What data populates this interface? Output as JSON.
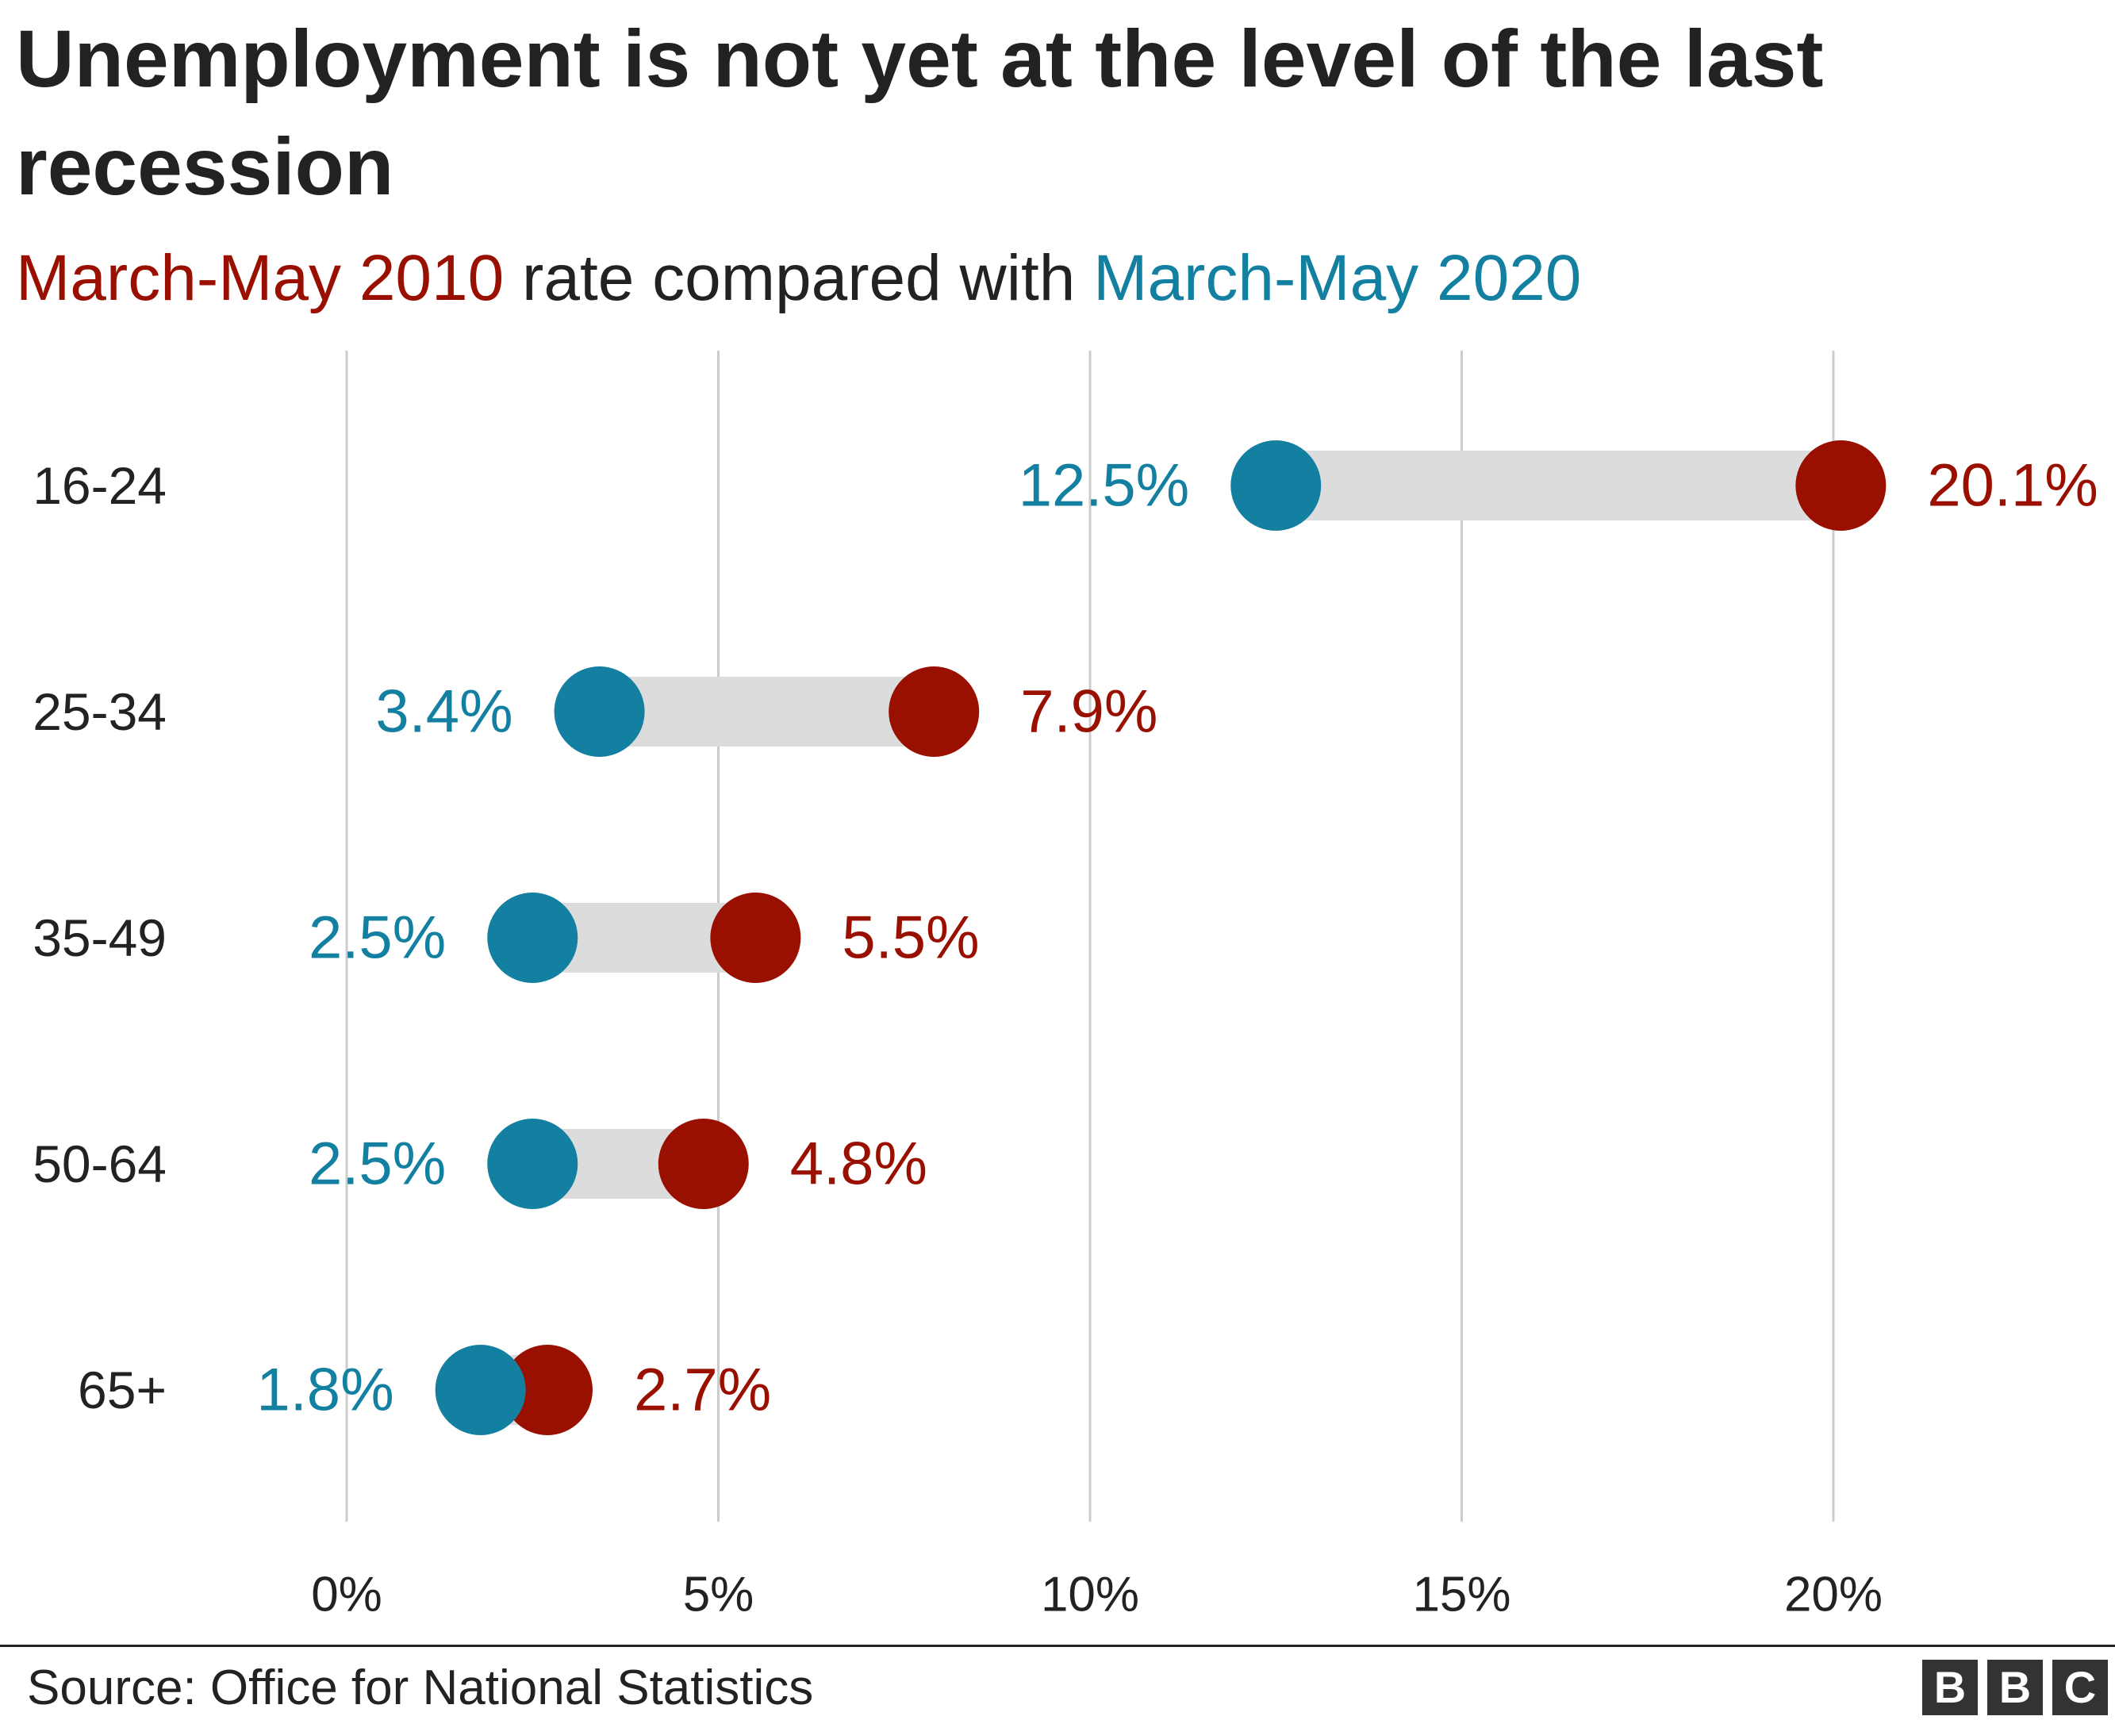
{
  "title": "Unemployment is not yet at the level of the last recession",
  "subtitle": {
    "red_text": "March-May 2010",
    "middle_text": " rate compared with ",
    "blue_text": "March-May 2020"
  },
  "colors": {
    "red": "#990f00",
    "blue": "#1380a1",
    "bar": "#dcdcdc",
    "grid": "#cccccc",
    "text": "#222222"
  },
  "chart_data": {
    "type": "dot-range",
    "categories": [
      "16-24",
      "25-34",
      "35-49",
      "50-64",
      "65+"
    ],
    "series": [
      {
        "name": "March-May 2010",
        "values": [
          20.1,
          7.9,
          5.5,
          4.8,
          2.7
        ],
        "labels": [
          "20.1%",
          "7.9%",
          "5.5%",
          "4.8%",
          "2.7%"
        ]
      },
      {
        "name": "March-May 2020",
        "values": [
          12.5,
          3.4,
          2.5,
          2.5,
          1.8
        ],
        "labels": [
          "12.5%",
          "3.4%",
          "2.5%",
          "2.5%",
          "1.8%"
        ]
      }
    ],
    "x_ticks": [
      0,
      5,
      10,
      15,
      20
    ],
    "x_tick_labels": [
      "0%",
      "5%",
      "10%",
      "15%",
      "20%"
    ],
    "xlim": [
      0,
      20
    ],
    "grid": true
  },
  "footer": {
    "source": "Source: Office for National Statistics",
    "logo_letters": [
      "B",
      "B",
      "C"
    ]
  }
}
